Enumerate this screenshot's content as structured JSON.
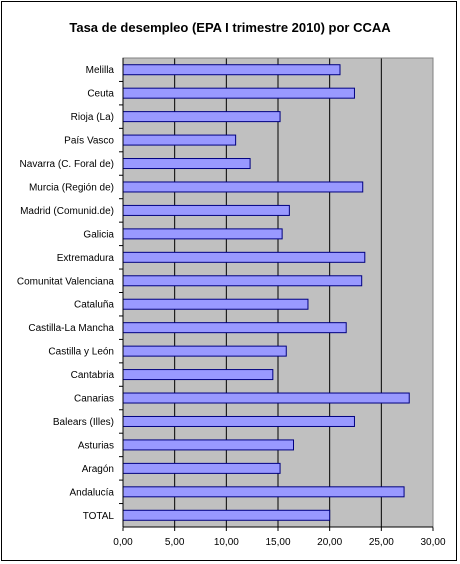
{
  "chart_data": {
    "type": "bar",
    "orientation": "horizontal",
    "title": "Tasa de desempleo (EPA I trimestre 2010) por CCAA",
    "categories": [
      "Melilla",
      "Ceuta",
      "Rioja (La)",
      "País Vasco",
      "Navarra (C. Foral de)",
      "Murcia (Región de)",
      "Madrid (Comunid.de)",
      "Galicia",
      "Extremadura",
      "Comunitat Valenciana",
      "Cataluña",
      "Castilla-La Mancha",
      "Castilla y León",
      "Cantabria",
      "Canarias",
      "Balears (Illes)",
      "Asturias",
      "Aragón",
      "Andalucía",
      "TOTAL"
    ],
    "values": [
      21.0,
      22.4,
      15.2,
      10.9,
      12.3,
      23.2,
      16.1,
      15.4,
      23.4,
      23.1,
      17.9,
      21.6,
      15.8,
      14.5,
      27.7,
      22.4,
      16.5,
      15.2,
      27.2,
      20.0
    ],
    "xlim": [
      0,
      30
    ],
    "xticks": [
      "0,00",
      "5,00",
      "10,00",
      "15,00",
      "20,00",
      "25,00",
      "30,00"
    ],
    "xlabel": "",
    "ylabel": "",
    "grid": true,
    "legend": "none",
    "colors": {
      "bar_fill": "#9999ff",
      "bar_stroke": "#000080",
      "plot_bg": "#c0c0c0",
      "grid": "#000000"
    }
  }
}
